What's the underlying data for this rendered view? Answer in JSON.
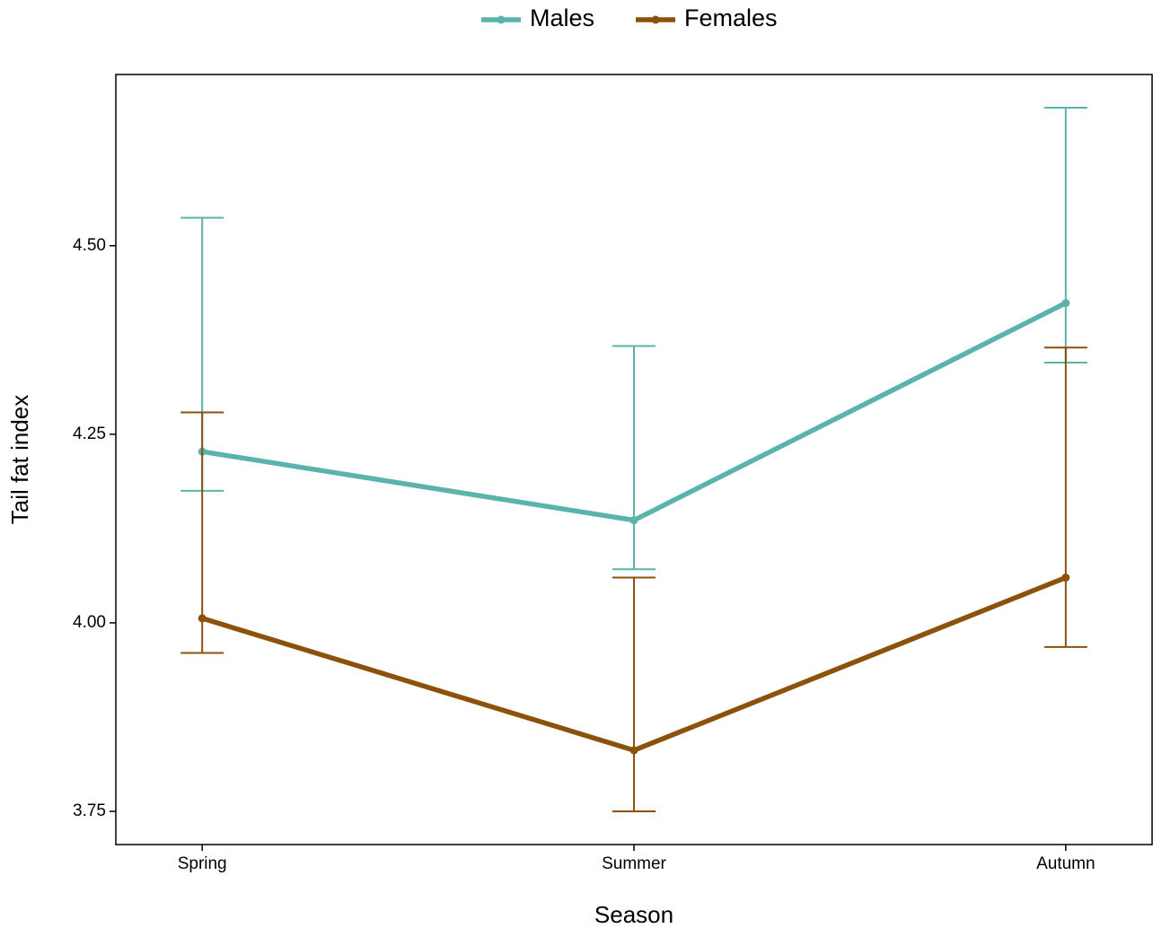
{
  "chart_data": {
    "type": "line_errorbar",
    "x_label": "Season",
    "y_label": "Tail fat index",
    "categories": [
      "Spring",
      "Summer",
      "Autumn"
    ],
    "series": [
      {
        "name": "Males",
        "color": "#5ab4ac",
        "values": [
          4.227,
          4.136,
          4.424
        ],
        "lower": [
          4.175,
          4.071,
          4.345
        ],
        "upper": [
          4.537,
          4.367,
          4.683
        ]
      },
      {
        "name": "Females",
        "color": "#8c510a",
        "values": [
          4.006,
          3.831,
          4.06
        ],
        "lower": [
          3.96,
          3.75,
          3.968
        ],
        "upper": [
          4.279,
          4.06,
          4.365
        ]
      }
    ],
    "ylim": [
      3.706,
      4.727
    ],
    "yticks": [
      {
        "value": 3.75,
        "label": "3.75"
      },
      {
        "value": 4.0,
        "label": "4.00"
      },
      {
        "value": 4.25,
        "label": "4.25"
      },
      {
        "value": 4.5,
        "label": "4.50"
      }
    ],
    "legend": "top"
  }
}
